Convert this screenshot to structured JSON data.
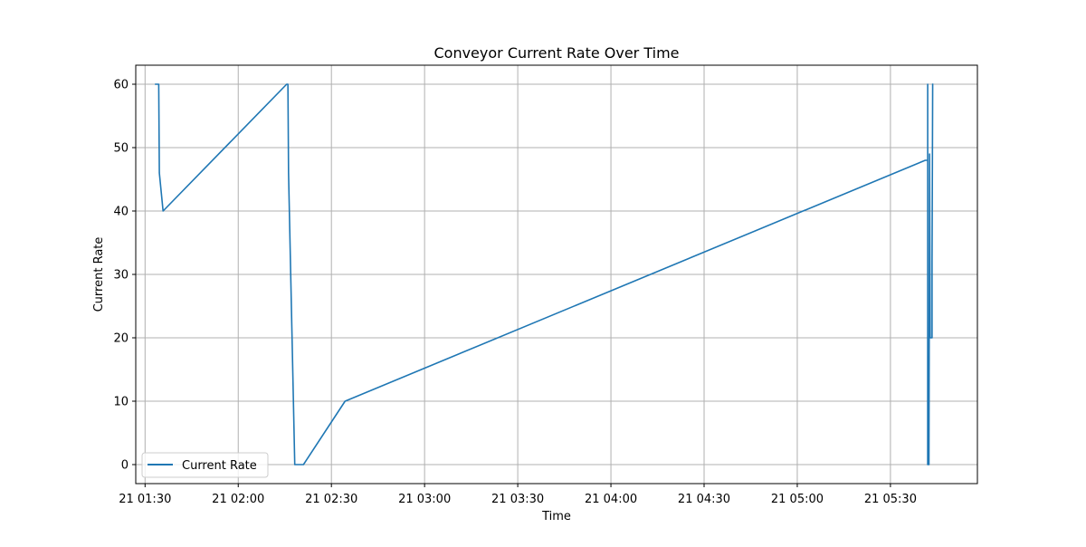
{
  "chart_data": {
    "type": "line",
    "title": "Conveyor Current Rate Over Time",
    "xlabel": "Time",
    "ylabel": "Current Rate",
    "x_is_datetime": true,
    "xlim": [
      "2024-01-21 01:27:00",
      "2024-01-21 05:58:00"
    ],
    "ylim": [
      -3,
      63
    ],
    "x_ticks": [
      {
        "value": "2024-01-21 01:30:00",
        "label": "21 01:30"
      },
      {
        "value": "2024-01-21 02:00:00",
        "label": "21 02:00"
      },
      {
        "value": "2024-01-21 02:30:00",
        "label": "21 02:30"
      },
      {
        "value": "2024-01-21 03:00:00",
        "label": "21 03:00"
      },
      {
        "value": "2024-01-21 03:30:00",
        "label": "21 03:30"
      },
      {
        "value": "2024-01-21 04:00:00",
        "label": "21 04:00"
      },
      {
        "value": "2024-01-21 04:30:00",
        "label": "21 04:30"
      },
      {
        "value": "2024-01-21 05:00:00",
        "label": "21 05:00"
      },
      {
        "value": "2024-01-21 05:30:00",
        "label": "21 05:30"
      }
    ],
    "y_ticks": [
      0,
      10,
      20,
      30,
      40,
      50,
      60
    ],
    "grid": true,
    "legend": {
      "position": "lower-left"
    },
    "series": [
      {
        "name": "Current Rate",
        "color": "#1f77b4",
        "points": [
          {
            "x": "2024-01-21 01:33:24",
            "y": 60
          },
          {
            "x": "2024-01-21 01:34:24",
            "y": 60
          },
          {
            "x": "2024-01-21 01:34:36",
            "y": 46
          },
          {
            "x": "2024-01-21 01:35:48",
            "y": 40
          },
          {
            "x": "2024-01-21 02:15:36",
            "y": 60
          },
          {
            "x": "2024-01-21 02:16:00",
            "y": 60
          },
          {
            "x": "2024-01-21 02:16:12",
            "y": 46
          },
          {
            "x": "2024-01-21 02:18:12",
            "y": 0
          },
          {
            "x": "2024-01-21 02:21:00",
            "y": 0
          },
          {
            "x": "2024-01-21 02:34:24",
            "y": 10
          },
          {
            "x": "2024-01-21 05:41:12",
            "y": 48
          },
          {
            "x": "2024-01-21 05:42:00",
            "y": 48
          },
          {
            "x": "2024-01-21 05:42:00",
            "y": 60
          },
          {
            "x": "2024-01-21 05:42:00",
            "y": 0
          },
          {
            "x": "2024-01-21 05:42:24",
            "y": 0
          },
          {
            "x": "2024-01-21 05:42:36",
            "y": 49
          },
          {
            "x": "2024-01-21 05:42:48",
            "y": 20
          },
          {
            "x": "2024-01-21 05:43:24",
            "y": 20
          },
          {
            "x": "2024-01-21 05:43:24",
            "y": 32
          },
          {
            "x": "2024-01-21 05:43:36",
            "y": 60
          }
        ]
      }
    ]
  }
}
